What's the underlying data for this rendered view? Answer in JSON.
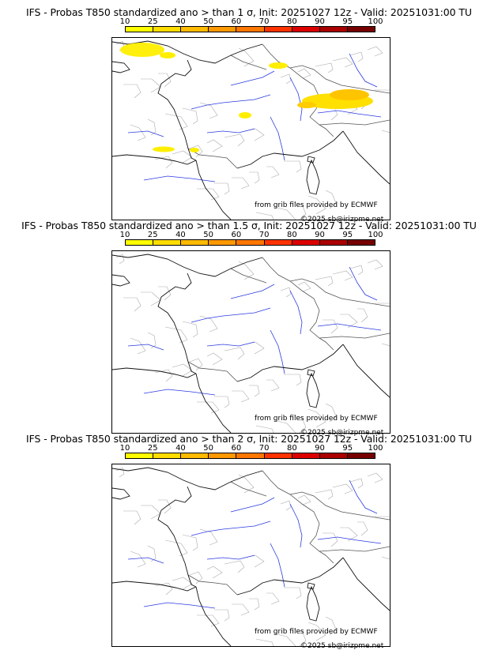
{
  "panels": [
    {
      "title": "IFS - Probas T850  standardized ano > than 1 σ, Init: 20251027 12z - Valid: 20251031:00 TU",
      "has_shading": true
    },
    {
      "title": "IFS - Probas T850  standardized ano > than 1.5 σ, Init: 20251027 12z - Valid: 20251031:00 TU",
      "has_shading": false
    },
    {
      "title": "IFS - Probas T850  standardized ano > than 2 σ, Init: 20251027 12z - Valid: 20251031:00 TU",
      "has_shading": false
    }
  ],
  "colorbar": {
    "ticks": [
      "10",
      "25",
      "40",
      "50",
      "60",
      "70",
      "80",
      "90",
      "95",
      "100"
    ],
    "colors": [
      "#ffff00",
      "#ffdd00",
      "#ffbb00",
      "#ff9900",
      "#ff7700",
      "#ff3300",
      "#dd0000",
      "#aa0000",
      "#770000"
    ]
  },
  "credits": {
    "source": "from grib files provided by ECMWF",
    "copyright": "©2025 sb@irizpme.net"
  }
}
